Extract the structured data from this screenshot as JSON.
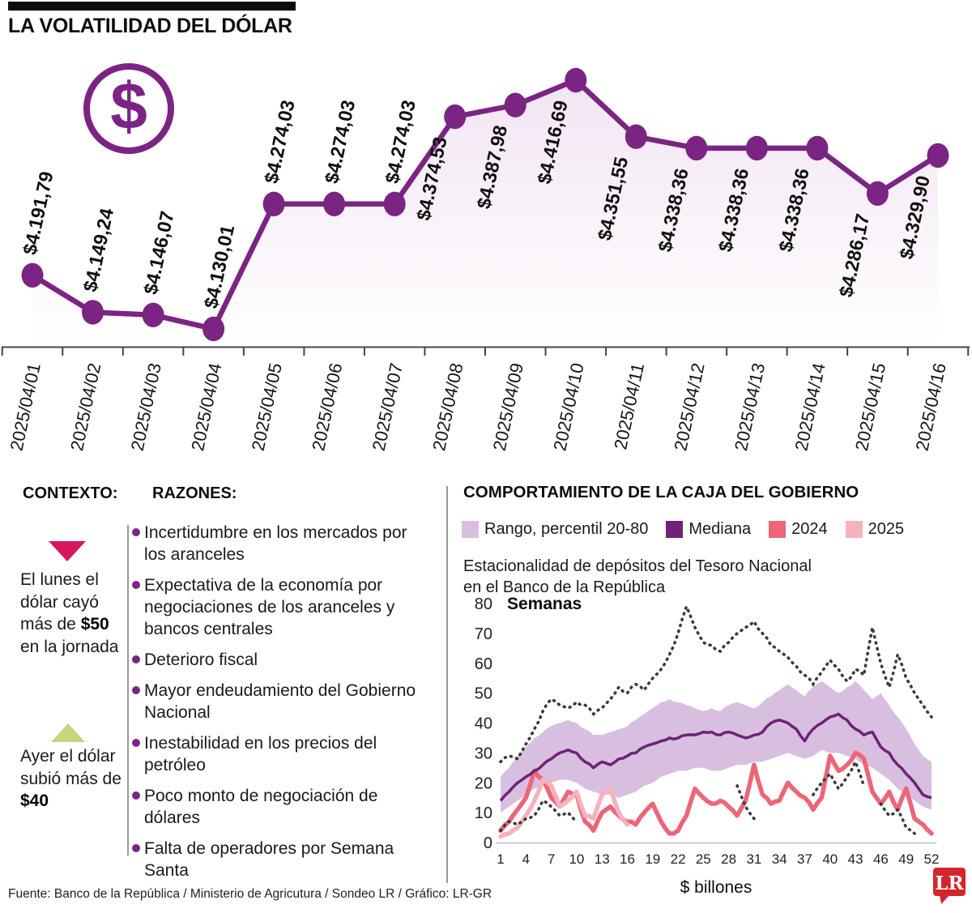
{
  "title": "LA VOLATILIDAD DEL DÓLAR",
  "dollar_icon": "$",
  "colors": {
    "purple": "#7B2483",
    "band": "#D8BFE0",
    "median": "#6F2277",
    "red_2024": "#EC6677",
    "pink_2025": "#F4B3BC",
    "dotted": "#3B3B3B",
    "triangle_down": "#D6175E",
    "triangle_up": "#C3D77D",
    "lr_red": "#D4252C",
    "area_top": "#F2E4F3",
    "area_bottom": "#FFFFFF"
  },
  "chart_data": [
    {
      "type": "line",
      "title": "LA VOLATILIDAD DEL DÓLAR",
      "x": [
        "2025/04/01",
        "2025/04/02",
        "2025/04/03",
        "2025/04/04",
        "2025/04/05",
        "2025/04/06",
        "2025/04/07",
        "2025/04/08",
        "2025/04/09",
        "2025/04/10",
        "2025/04/11",
        "2025/04/12",
        "2025/04/13",
        "2025/04/14",
        "2025/04/15",
        "2025/04/16"
      ],
      "values": [
        4191.79,
        4149.24,
        4146.07,
        4130.01,
        4274.03,
        4274.03,
        4274.03,
        4374.53,
        4387.98,
        4416.69,
        4351.55,
        4338.36,
        4338.36,
        4338.36,
        4286.17,
        4329.9
      ],
      "point_labels": [
        "$4.191,79",
        "$4.149,24",
        "$4.146,07",
        "$4.130,01",
        "$4.274,03",
        "$4.274,03",
        "$4.274,03",
        "$4.374,53",
        "$4.387,98",
        "$4.416,69",
        "$4.351,55",
        "$4.338,36",
        "$4.338,36",
        "$4.338,36",
        "$4.286,17",
        "$4.329,90"
      ],
      "ylim": [
        4100,
        4440
      ],
      "grid": false,
      "legend_position": "none",
      "line_color": "#7B2483",
      "area_fill": true
    },
    {
      "type": "line",
      "title": "COMPORTAMIENTO DE LA CAJA DEL GOBIERNO",
      "subtitle": "Estacionalidad de depósitos del Tesoro Nacional en el Banco de la República",
      "xlabel": "$ billones",
      "ylabel": "Semanas",
      "xlim": [
        1,
        52
      ],
      "ylim": [
        0,
        80
      ],
      "x_ticks": [
        1,
        4,
        7,
        10,
        13,
        16,
        19,
        22,
        25,
        28,
        31,
        34,
        37,
        40,
        43,
        46,
        49,
        52
      ],
      "y_ticks": [
        0,
        10,
        20,
        30,
        40,
        50,
        60,
        70,
        80
      ],
      "grid": false,
      "x": [
        1,
        2,
        3,
        4,
        5,
        6,
        7,
        8,
        9,
        10,
        11,
        12,
        13,
        14,
        15,
        16,
        17,
        18,
        19,
        20,
        21,
        22,
        23,
        24,
        25,
        26,
        27,
        28,
        29,
        30,
        31,
        32,
        33,
        34,
        35,
        36,
        37,
        38,
        39,
        40,
        41,
        42,
        43,
        44,
        45,
        46,
        47,
        48,
        49,
        50,
        51,
        52
      ],
      "series": [
        {
          "name": "Rango, percentil 20-80 (límite superior)",
          "color": "#D8BFE0",
          "style": "band-upper",
          "values": [
            22,
            25,
            29,
            32,
            35,
            37,
            39,
            40,
            41,
            40,
            38,
            36,
            36,
            37,
            38,
            39,
            41,
            43,
            45,
            47,
            48,
            47,
            46,
            45,
            44,
            45,
            44,
            46,
            47,
            46,
            45,
            47,
            49,
            51,
            53,
            51,
            49,
            52,
            54,
            52,
            50,
            52,
            54,
            51,
            48,
            50,
            46,
            42,
            38,
            33,
            29,
            27
          ]
        },
        {
          "name": "Rango, percentil 20-80 (límite inferior)",
          "color": "#D8BFE0",
          "style": "band-lower",
          "values": [
            10,
            12,
            14,
            16,
            18,
            19,
            20,
            21,
            21,
            20,
            18,
            17,
            16,
            16,
            15,
            16,
            17,
            19,
            20,
            22,
            23,
            24,
            24,
            25,
            25,
            24,
            24,
            25,
            26,
            26,
            27,
            27,
            28,
            29,
            30,
            29,
            28,
            29,
            31,
            30,
            30,
            29,
            28,
            26,
            25,
            23,
            21,
            18,
            16,
            14,
            12,
            11
          ]
        },
        {
          "name": "Mediana",
          "color": "#6F2277",
          "style": "solid",
          "values": [
            14,
            17,
            20,
            22,
            24,
            26,
            28,
            30,
            31,
            30,
            27,
            25,
            27,
            26,
            28,
            29,
            30,
            32,
            33,
            34,
            35,
            35,
            36,
            36,
            37,
            37,
            36,
            37,
            36,
            35,
            36,
            37,
            40,
            41,
            40,
            38,
            34,
            38,
            40,
            42,
            43,
            41,
            38,
            36,
            37,
            32,
            30,
            26,
            23,
            20,
            16,
            15
          ]
        },
        {
          "name": "2024",
          "color": "#EC6677",
          "style": "solid",
          "values": [
            4,
            7,
            11,
            15,
            24,
            21,
            15,
            12,
            17,
            16,
            7,
            4,
            10,
            12,
            9,
            7,
            6,
            10,
            13,
            7,
            3,
            4,
            9,
            18,
            15,
            13,
            14,
            12,
            9,
            14,
            26,
            16,
            13,
            14,
            20,
            17,
            15,
            11,
            15,
            29,
            24,
            26,
            30,
            28,
            17,
            13,
            17,
            11,
            18,
            8,
            6,
            3
          ]
        },
        {
          "name": "2025",
          "color": "#F4B3BC",
          "style": "solid",
          "values": [
            2,
            3,
            5,
            9,
            14,
            21,
            19,
            12,
            14,
            17,
            9,
            8,
            16,
            18,
            10,
            6
          ]
        },
        {
          "name": "línea punteada superior",
          "color": "#3B3B3B",
          "style": "dotted",
          "values": [
            27,
            29,
            28,
            33,
            38,
            44,
            48,
            46,
            45,
            47,
            46,
            43,
            45,
            48,
            52,
            50,
            53,
            51,
            55,
            58,
            63,
            70,
            79,
            72,
            67,
            66,
            64,
            67,
            70,
            72,
            74,
            70,
            66,
            64,
            62,
            59,
            56,
            53,
            57,
            61,
            58,
            54,
            58,
            56,
            72,
            60,
            52,
            63,
            55,
            50,
            46,
            42
          ]
        },
        {
          "name": "línea punteada inferior",
          "color": "#3B3B3B",
          "style": "dotted",
          "values": [
            4,
            7,
            6,
            8,
            9,
            14,
            12,
            9,
            10,
            7,
            null,
            null,
            null,
            null,
            null,
            null,
            null,
            null,
            null,
            null,
            null,
            null,
            null,
            null,
            null,
            null,
            null,
            null,
            19,
            12,
            8,
            null,
            null,
            null,
            null,
            null,
            null,
            16,
            20,
            23,
            18,
            22,
            27,
            19,
            null,
            13,
            9,
            11,
            5,
            3,
            null,
            null
          ]
        }
      ]
    }
  ],
  "contexto": {
    "heading": "CONTEXTO:",
    "items": [
      {
        "direction": "down",
        "pre": "El lunes el dólar cayó más de ",
        "bold": "$50",
        "post": " en la jornada"
      },
      {
        "direction": "up",
        "pre": "Ayer el dólar subió más de ",
        "bold": "$40",
        "post": ""
      }
    ]
  },
  "razones": {
    "heading": "RAZONES:",
    "items": [
      "Incertidumbre en los mercados por los aranceles",
      "Expectativa de la economía por negociaciones de los aranceles y bancos centrales",
      "Deterioro fiscal",
      "Mayor endeudamiento del Gobierno Nacional",
      "Inestabilidad en los precios del petróleo",
      "Poco monto de negociación de dólares",
      "Falta de operadores por Semana Santa"
    ]
  },
  "caja": {
    "heading": "COMPORTAMIENTO DE LA CAJA DEL GOBIERNO",
    "legend": [
      {
        "label": "Rango, percentil 20-80",
        "color": "#D8BFE0"
      },
      {
        "label": "Mediana",
        "color": "#6F2277"
      },
      {
        "label": "2024",
        "color": "#EC6677"
      },
      {
        "label": "2025",
        "color": "#F4B3BC"
      }
    ],
    "subtitle_lines": [
      "Estacionalidad de depósitos del Tesoro Nacional",
      "en el Banco de la República"
    ],
    "ylabel": "Semanas",
    "xlabel": "$ billones",
    "y_ticks": [
      "0",
      "10",
      "20",
      "30",
      "40",
      "50",
      "60",
      "70",
      "80"
    ],
    "x_ticks": [
      "1",
      "4",
      "7",
      "10",
      "13",
      "16",
      "19",
      "22",
      "25",
      "28",
      "31",
      "34",
      "37",
      "40",
      "43",
      "46",
      "49",
      "52"
    ]
  },
  "footer": {
    "source": "Fuente: Banco de la República / Ministerio de Agricutura / Sondeo LR / Gráfico: LR-GR"
  },
  "logo": {
    "text": "LR"
  }
}
